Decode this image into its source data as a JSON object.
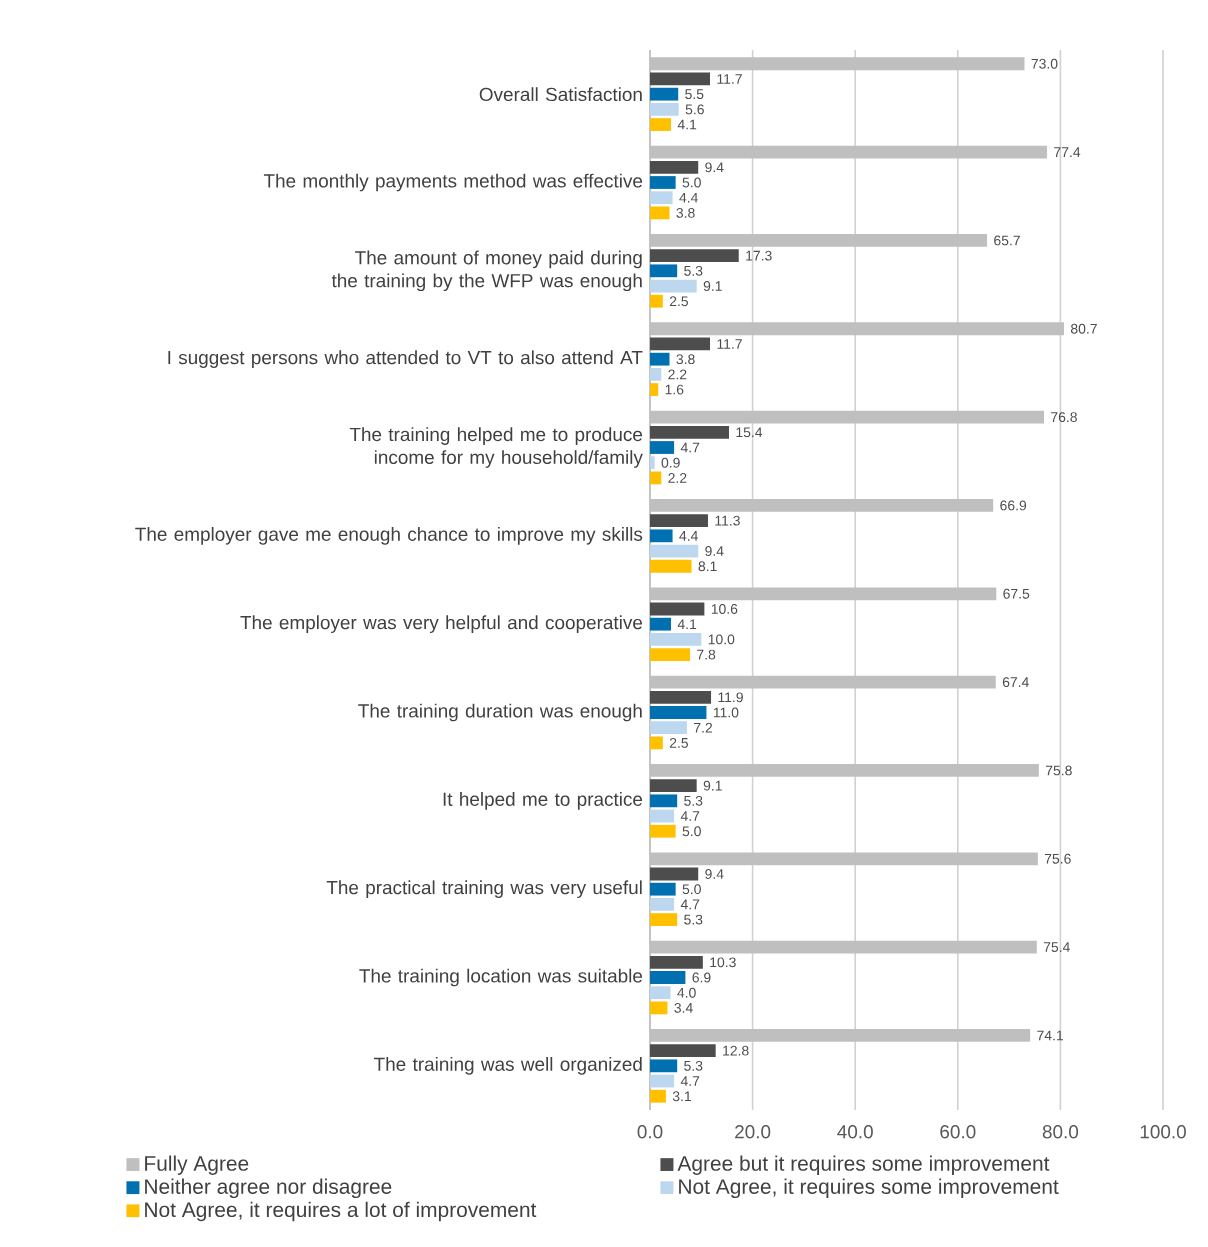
{
  "chart_data": {
    "type": "bar",
    "orientation": "horizontal",
    "categories": [
      "Overall Satisfaction",
      "The monthly payments method was effective",
      "The amount of money paid during the training by the WFP was enough",
      "I suggest persons who attended to VT to also attend AT",
      "The training helped me to produce income for my household/family",
      "The employer gave me enough chance to improve my skills",
      "The employer was very helpful and cooperative",
      "The training duration was enough",
      "It helped me to practice",
      "The practical training was very useful",
      "The training location was suitable",
      "The training was well organized"
    ],
    "series": [
      {
        "name": "Fully Agree",
        "color": "#bfbfbf",
        "values": [
          73.0,
          77.4,
          65.7,
          80.7,
          76.8,
          66.9,
          67.5,
          67.4,
          75.8,
          75.6,
          75.4,
          74.1
        ],
        "value_labels": [
          "73.0",
          "77.4",
          "65.7",
          "80.7",
          "76.8",
          "66.9",
          "67.5",
          "67.4",
          "75.8",
          "75.6",
          "75.4",
          "74.1"
        ]
      },
      {
        "name": "Agree but it requires some improvement",
        "color": "#4d4d4d",
        "values": [
          11.7,
          9.4,
          17.3,
          11.7,
          15.4,
          11.3,
          10.6,
          11.9,
          9.1,
          9.4,
          10.3,
          12.8
        ],
        "value_labels": [
          "11.7",
          "9.4",
          "17.3",
          "11.7",
          "15.4",
          "11.3",
          "10.6",
          "11.9",
          "9.1",
          "9.4",
          "10.3",
          "12.8"
        ]
      },
      {
        "name": "Neither agree nor disagree",
        "color": "#0070b0",
        "values": [
          5.5,
          5.0,
          5.3,
          3.8,
          4.7,
          4.4,
          4.1,
          11.0,
          5.3,
          5.0,
          6.9,
          5.3
        ],
        "value_labels": [
          "5.5",
          "5.0",
          "5.3",
          "3.8",
          "4.7",
          "4.4",
          "4.1",
          "11.0",
          "5.3",
          "5.0",
          "6.9",
          "5.3"
        ]
      },
      {
        "name": "Not Agree, it requires some improvement",
        "color": "#bdd7ee",
        "values": [
          5.6,
          4.4,
          9.1,
          2.2,
          0.9,
          9.4,
          10.0,
          7.2,
          4.7,
          4.7,
          4.0,
          4.7
        ],
        "value_labels": [
          "5.6",
          "4.4",
          "9.1",
          "2.2",
          "0.9",
          "9.4",
          "10.0",
          "7.2",
          "4.7",
          "4.7",
          "4.0",
          "4.7"
        ]
      },
      {
        "name": "Not Agree, it requires a lot of improvement",
        "color": "#ffc000",
        "values": [
          4.1,
          3.8,
          2.5,
          1.6,
          2.2,
          8.1,
          7.8,
          2.5,
          5.0,
          5.3,
          3.4,
          3.1
        ],
        "value_labels": [
          "4.1",
          "3.8",
          "2.5",
          "1.6",
          "2.2",
          "8.1",
          "7.8",
          "2.5",
          "5.0",
          "5.3",
          "3.4",
          "3.1"
        ]
      }
    ],
    "xlim": [
      0,
      100
    ],
    "xticks": [
      {
        "value": 0,
        "label": "0.0"
      },
      {
        "value": 20,
        "label": "20.0"
      },
      {
        "value": 40,
        "label": "40.0"
      },
      {
        "value": 60,
        "label": "60.0"
      },
      {
        "value": 80,
        "label": "80.0"
      },
      {
        "value": 100,
        "label": "100.0"
      }
    ],
    "grid": "x",
    "legend": "bottom"
  }
}
